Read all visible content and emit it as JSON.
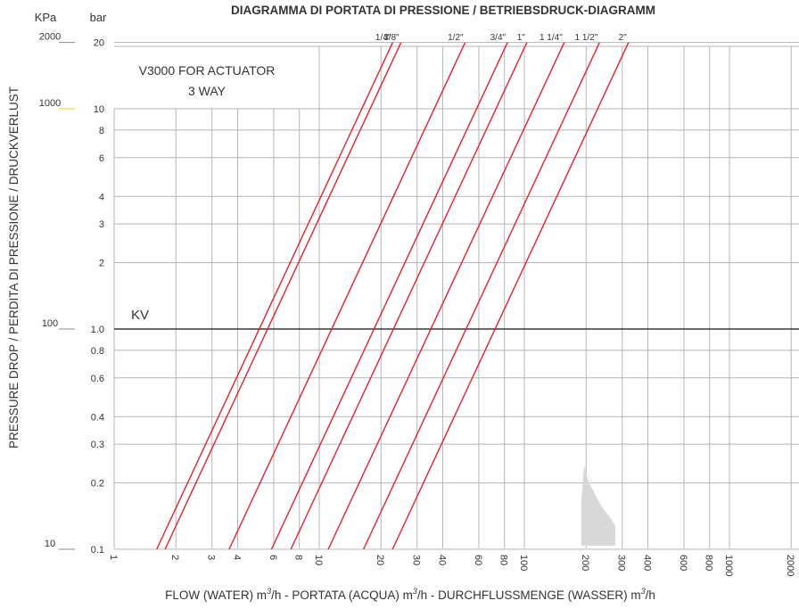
{
  "chart_data": {
    "type": "line",
    "title": "DIAGRAMMA DI PORTATA DI PRESSIONE / BETRIEBSDRUCK-DIAGRAMM",
    "subtitle": "V3000 FOR ACTUATOR",
    "subtitle2": "3 WAY",
    "xlabel_main": "FLOW (WATER) m",
    "xlabel_super": "3",
    "xlabel_rest": "/h - PORTATA (ACQUA) m",
    "xlabel_rest2": "/h - DURCHFLUSSMENGE (WASSER) m",
    "xlabel_end": "/h",
    "ylabel": "PRESSURE DROP / PERDITA DI PRESSIONE / DRUCKVERLUST",
    "y_unit_kpa": "KPa",
    "y_unit_bar": "bar",
    "kv_label": "KV",
    "x_scale": "log",
    "y_scale": "log",
    "xlim": [
      0.9,
      2000
    ],
    "ylim_bar": [
      0.1,
      20
    ],
    "x_ticks": [
      {
        "v": 1,
        "label": "1"
      },
      {
        "v": 2,
        "label": "2"
      },
      {
        "v": 3,
        "label": "3"
      },
      {
        "v": 4,
        "label": "4"
      },
      {
        "v": 6,
        "label": "6"
      },
      {
        "v": 8,
        "label": "8"
      },
      {
        "v": 10,
        "label": "10"
      },
      {
        "v": 20,
        "label": "20"
      },
      {
        "v": 30,
        "label": "30"
      },
      {
        "v": 40,
        "label": "40"
      },
      {
        "v": 60,
        "label": "60"
      },
      {
        "v": 80,
        "label": "80"
      },
      {
        "v": 100,
        "label": "100"
      },
      {
        "v": 200,
        "label": "200"
      },
      {
        "v": 300,
        "label": "300"
      },
      {
        "v": 400,
        "label": "400"
      },
      {
        "v": 600,
        "label": "600"
      },
      {
        "v": 800,
        "label": "800"
      },
      {
        "v": 1000,
        "label": "1000"
      },
      {
        "v": 2000,
        "label": "2000"
      }
    ],
    "y_ticks_bar": [
      {
        "v": 0.1,
        "label": "0.1"
      },
      {
        "v": 0.2,
        "label": "0.2"
      },
      {
        "v": 0.3,
        "label": "0.3"
      },
      {
        "v": 0.4,
        "label": "0.4"
      },
      {
        "v": 0.6,
        "label": "0.6"
      },
      {
        "v": 0.8,
        "label": "0.8"
      },
      {
        "v": 1.0,
        "label": "1.0"
      },
      {
        "v": 2,
        "label": "2"
      },
      {
        "v": 3,
        "label": "3"
      },
      {
        "v": 4,
        "label": "4"
      },
      {
        "v": 6,
        "label": "6"
      },
      {
        "v": 8,
        "label": "8"
      },
      {
        "v": 10,
        "label": "10"
      },
      {
        "v": 20,
        "label": "20"
      }
    ],
    "y_ticks_kpa": [
      {
        "v": 0.1,
        "label": "10"
      },
      {
        "v": 1.0,
        "label": "100"
      },
      {
        "v": 10,
        "label": "1000"
      },
      {
        "v": 20,
        "label": "2000"
      }
    ],
    "series": [
      {
        "name": "1/4\"",
        "kv": 5.1
      },
      {
        "name": "3/8\"",
        "kv": 5.6
      },
      {
        "name": "1/2\"",
        "kv": 11.5
      },
      {
        "name": "3/4\"",
        "kv": 18.5
      },
      {
        "name": "1\"",
        "kv": 23
      },
      {
        "name": "1 1/4\"",
        "kv": 35
      },
      {
        "name": "1 1/2\"",
        "kv": 52
      },
      {
        "name": "2\"",
        "kv": 72
      }
    ],
    "grid": true,
    "line_color": "#e8202a"
  }
}
